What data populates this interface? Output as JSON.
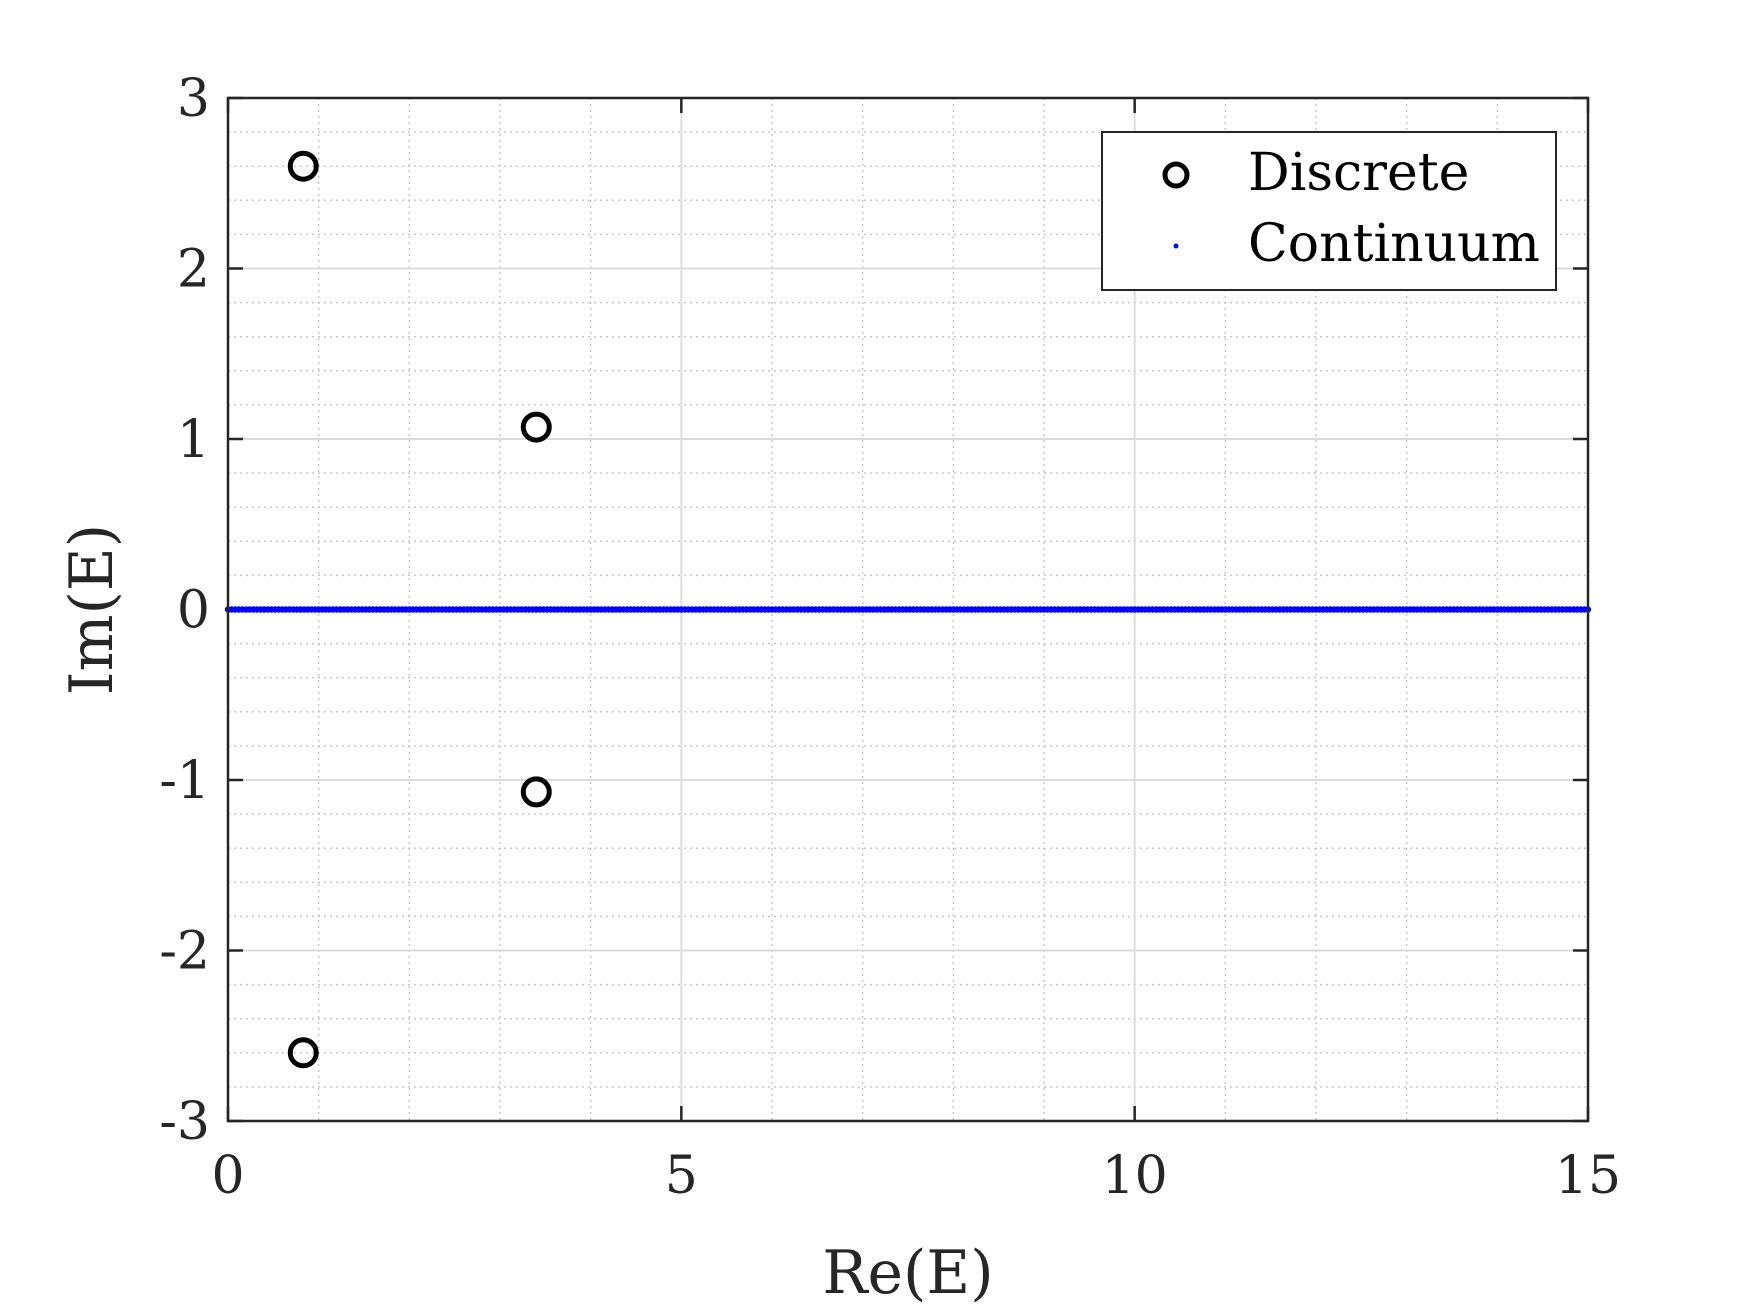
{
  "chart_data": {
    "type": "scatter",
    "xlabel": "Re(E)",
    "ylabel": "Im(E)",
    "xlim": [
      0,
      15
    ],
    "ylim": [
      -3,
      3
    ],
    "x_ticks": [
      "0",
      "5",
      "10",
      "15"
    ],
    "y_ticks": [
      "-3",
      "-2",
      "-1",
      "0",
      "1",
      "2",
      "3"
    ],
    "grid": true,
    "minor_grid": true,
    "legend_position": "top-right",
    "series": [
      {
        "name": "Discrete",
        "marker": "open-circle",
        "color": "#000000",
        "points": [
          {
            "x": 0.83,
            "y": 2.6
          },
          {
            "x": 0.83,
            "y": -2.6
          },
          {
            "x": 3.4,
            "y": 1.07
          },
          {
            "x": 3.4,
            "y": -1.07
          }
        ]
      },
      {
        "name": "Continuum",
        "marker": "dot",
        "color": "#0000ff",
        "x_range": [
          0,
          15
        ],
        "y": 0
      }
    ]
  }
}
